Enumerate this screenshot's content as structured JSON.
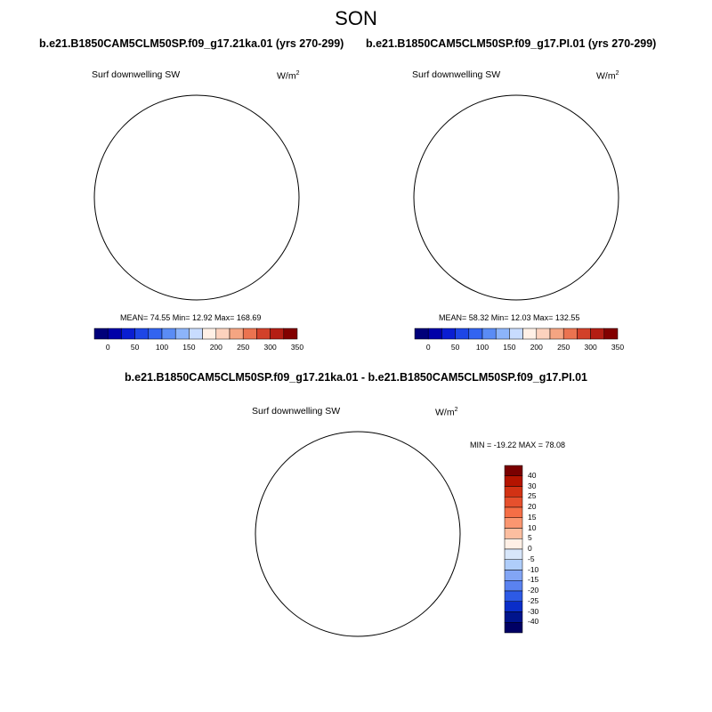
{
  "figure": {
    "season": "SON",
    "panels": [
      {
        "id": "left",
        "title": "b.e21.B1850CAM5CLM50SP.f09_g17.21ka.01 (yrs 270-299)",
        "variable": "Surf downwelling SW",
        "units": "W/m",
        "units_sup": "2",
        "stats": "MEAN=  74.55  Min=  12.92  Max= 168.69",
        "stats_values": {
          "mean": 74.55,
          "min": 12.92,
          "max": 168.69
        }
      },
      {
        "id": "right",
        "title": "b.e21.B1850CAM5CLM50SP.f09_g17.PI.01 (yrs 270-299)",
        "variable": "Surf downwelling SW",
        "units": "W/m",
        "units_sup": "2",
        "stats": "MEAN=  58.32  Min=  12.03  Max= 132.55",
        "stats_values": {
          "mean": 58.32,
          "min": 12.03,
          "max": 132.55
        }
      },
      {
        "id": "diff",
        "title": "b.e21.B1850CAM5CLM50SP.f09_g17.21ka.01 - b.e21.B1850CAM5CLM50SP.f09_g17.PI.01",
        "variable": "Surf downwelling SW",
        "units": "W/m",
        "units_sup": "2",
        "stats": "MIN = -19.22 MAX =  78.08",
        "stats_values": {
          "min": -19.22,
          "max": 78.08
        }
      }
    ],
    "abs_colorbar": {
      "levels": [
        0,
        25,
        50,
        75,
        100,
        125,
        150,
        175,
        200,
        225,
        250,
        275,
        300,
        325,
        350
      ],
      "tick_labels": [
        "0",
        "50",
        "100",
        "150",
        "200",
        "250",
        "300",
        "350"
      ],
      "colors": [
        "#00007a",
        "#0000a8",
        "#0a1ed2",
        "#1e46e6",
        "#3264f0",
        "#5a8cf5",
        "#8cb4fa",
        "#c8dcff",
        "#fff0e6",
        "#fcd2be",
        "#f5a582",
        "#eb7350",
        "#d2412a",
        "#b41e14",
        "#820000"
      ]
    },
    "diff_colorbar": {
      "levels": [
        -40,
        -30,
        -25,
        -20,
        -15,
        -10,
        -5,
        0,
        5,
        10,
        15,
        20,
        25,
        30,
        40
      ],
      "tick_labels": [
        "40",
        "30",
        "25",
        "20",
        "15",
        "10",
        "5",
        "0",
        "-5",
        "-10",
        "-15",
        "-20",
        "-25",
        "-30",
        "-40"
      ],
      "colors": [
        "#7a0000",
        "#b41400",
        "#d23214",
        "#e6502d",
        "#f56e46",
        "#fa9670",
        "#fcbea0",
        "#fff0e6",
        "#d7e6fa",
        "#afcdfa",
        "#82a5f5",
        "#5a82f0",
        "#2d5ae6",
        "#0a2dc8",
        "#00148c",
        "#000064"
      ]
    },
    "colors": {
      "polar_core": "#1c3ed9",
      "polar_mid": "#2e5ceb",
      "polar_outer": "#4b79f2",
      "polar_light": "#8fb4f7",
      "diff_core": "#fbdfcd",
      "diff_mid": "#f6a07a",
      "diff_strong": "#dd4a24",
      "diff_max": "#a91206",
      "diff_blue": "#c9dcf8"
    }
  }
}
